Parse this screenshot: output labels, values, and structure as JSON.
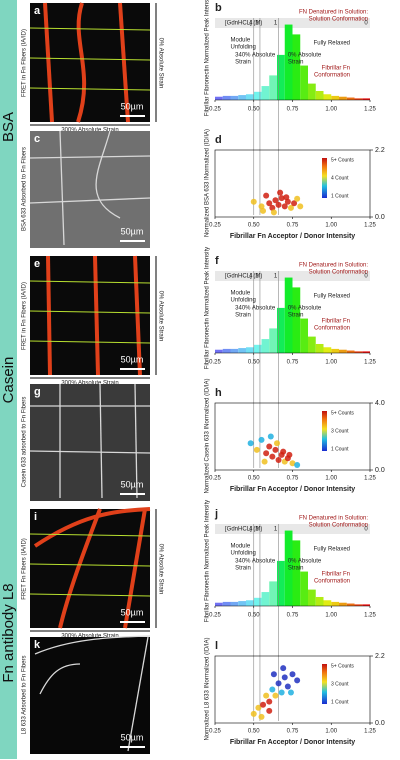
{
  "histogram": {
    "ylabel": "Fibrillar Fibronectin Normalized Peak Intensity",
    "gdn_label": "[GdnHCL] (M)",
    "gdn_marks": [
      {
        "label": "4",
        "x": 0.5
      },
      {
        "label": "2",
        "x": 0.54
      },
      {
        "label": "1",
        "x": 0.66
      },
      {
        "label": "0",
        "x": 1.25
      }
    ],
    "denatured": [
      "FN Denatured in Solution:",
      "Solution Conformation"
    ],
    "relaxed": "Fully Relaxed",
    "unfolding": [
      "Module",
      "Unfolding"
    ],
    "strain_340": [
      "340% Absolute",
      "Strain"
    ],
    "strain_0": [
      "0% Absolute",
      "Strain"
    ],
    "fibrillar": [
      "Fibrillar Fn",
      "Conformation"
    ],
    "xlim": [
      0.25,
      1.25
    ],
    "ylim": [
      0,
      1
    ],
    "xticks": [
      0.25,
      {
        "value": 0.5,
        "label": "0.50"
      },
      0.75,
      {
        "value": 1.0,
        "label": "1.00"
      },
      1.25
    ],
    "bins": [
      0.25,
      0.3,
      0.35,
      0.4,
      0.45,
      0.5,
      0.55,
      0.6,
      0.65,
      0.7,
      0.75,
      0.8,
      0.85,
      0.9,
      0.95,
      1.0,
      1.05,
      1.1,
      1.15,
      1.2,
      1.25
    ],
    "counts": [
      0.04,
      0.05,
      0.05,
      0.06,
      0.07,
      0.1,
      0.17,
      0.3,
      0.55,
      0.92,
      0.8,
      0.42,
      0.2,
      0.11,
      0.07,
      0.05,
      0.04,
      0.03,
      0.02,
      0.02
    ]
  },
  "xlabel": "Fibrillar Fn Acceptor / Donor Intensity",
  "groups": [
    {
      "label": "BSA",
      "fret": {
        "letter": "a",
        "ylabel": "FRET in Fn Fibers (IA/ID)",
        "scale": "50µm",
        "strain_h": "300% Absolute Strain",
        "strain_v": "0% Absolute Strain"
      },
      "stain": {
        "letter": "c",
        "ylabel": "BSA 633 Adsorbed to Fn Fibers",
        "scale": "50µm"
      },
      "hist_letter": "b",
      "scatter": {
        "letter": "d",
        "ylabel": "Normalized BSA 633 INormalized (ID/IA)",
        "ylim": [
          0,
          2.2
        ],
        "yticks": [
          2.2,
          {
            "value": 0,
            "label": "0.0"
          }
        ],
        "legend": [
          "5+ Counts",
          "4 Count",
          "1 Count"
        ],
        "x": [
          0.5,
          0.55,
          0.58,
          0.6,
          0.62,
          0.64,
          0.66,
          0.68,
          0.7,
          0.72,
          0.74,
          0.76,
          0.8,
          0.56,
          0.67,
          0.71,
          0.63,
          0.78
        ],
        "y": [
          0.5,
          0.35,
          0.7,
          0.45,
          0.3,
          0.55,
          0.4,
          0.62,
          0.35,
          0.5,
          0.3,
          0.45,
          0.35,
          0.2,
          0.8,
          0.65,
          0.15,
          0.6
        ]
      }
    },
    {
      "label": "Casein",
      "fret": {
        "letter": "e",
        "ylabel": "FRET in Fn Fibers (IA/ID)",
        "scale": "50µm",
        "strain_h": "300% Absolute Strain",
        "strain_v": "0% Absolute Strain"
      },
      "stain": {
        "letter": "g",
        "ylabel": "Casein 633 adsorbed to Fn Fibers",
        "scale": "50µm"
      },
      "hist_letter": "f",
      "scatter": {
        "letter": "h",
        "ylabel": "Normalized Casein 633 INormalized (ID/IA)",
        "ylim": [
          0,
          4
        ],
        "yticks": [
          {
            "value": 4,
            "label": "4.0"
          },
          {
            "value": 0,
            "label": "0.0"
          }
        ],
        "legend": [
          "5+ Counts",
          "3 Count",
          "1 Count"
        ],
        "x": [
          0.48,
          0.52,
          0.55,
          0.58,
          0.6,
          0.62,
          0.64,
          0.66,
          0.68,
          0.7,
          0.72,
          0.75,
          0.78,
          0.57,
          0.65,
          0.69,
          0.61,
          0.73
        ],
        "y": [
          1.6,
          1.2,
          1.8,
          1.0,
          1.4,
          0.8,
          1.2,
          0.6,
          0.9,
          0.5,
          0.7,
          0.4,
          0.3,
          0.5,
          1.6,
          1.1,
          2.0,
          0.9
        ]
      }
    },
    {
      "label": "Fn antibody L8",
      "fret": {
        "letter": "i",
        "ylabel": "FRET Fn Fibers (IA/ID)",
        "scale": "50µm",
        "strain_h": "300% Absolute Strain",
        "strain_v": "0% Absolute Strain"
      },
      "stain": {
        "letter": "k",
        "ylabel": "L8 633 Adsorbed to Fn Fibers",
        "scale": "50µm"
      },
      "hist_letter": "j",
      "scatter": {
        "letter": "l",
        "ylabel": "Normalized L8 633 INormalized (ID/IA)",
        "ylim": [
          0,
          2.2
        ],
        "yticks": [
          2.2,
          {
            "value": 0,
            "label": "0.0"
          }
        ],
        "legend": [
          "5+ Counts",
          "3 Count",
          "1 Count"
        ],
        "x": [
          0.5,
          0.53,
          0.56,
          0.58,
          0.6,
          0.62,
          0.64,
          0.66,
          0.68,
          0.7,
          0.72,
          0.75,
          0.78,
          0.55,
          0.63,
          0.69,
          0.6,
          0.74
        ],
        "y": [
          0.3,
          0.5,
          0.6,
          0.9,
          0.7,
          1.1,
          0.9,
          1.3,
          1.0,
          1.5,
          1.2,
          1.6,
          1.4,
          0.2,
          1.6,
          1.8,
          0.4,
          1.0
        ]
      }
    }
  ]
}
